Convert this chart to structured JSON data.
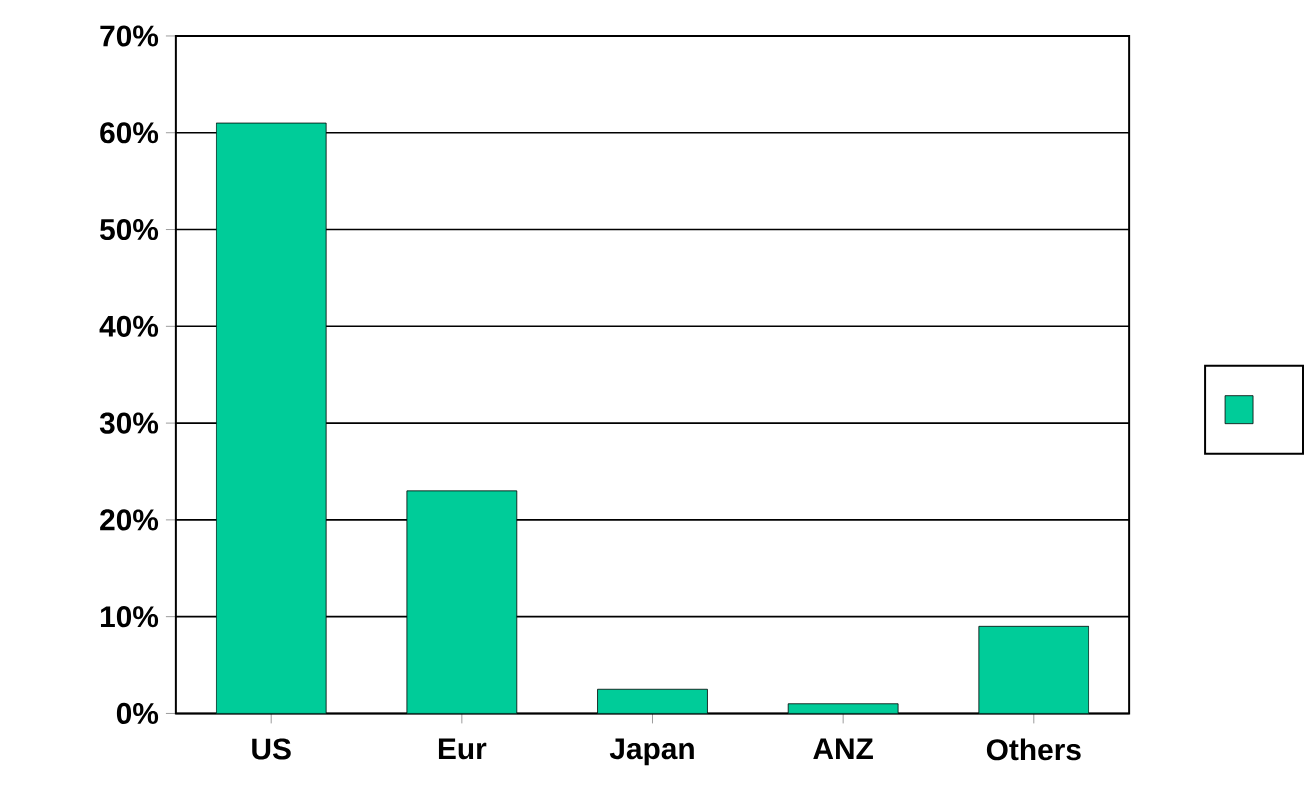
{
  "chart_data": {
    "type": "bar",
    "categories": [
      "US",
      "Eur",
      "Japan",
      "ANZ",
      "Others"
    ],
    "series": [
      {
        "color": "#00cc99",
        "values": [
          61,
          23,
          2.5,
          1,
          9
        ]
      }
    ],
    "ylim": [
      0,
      70
    ],
    "yticks": [
      {
        "value": 0,
        "label": "0%"
      },
      {
        "value": 10,
        "label": "10%"
      },
      {
        "value": 20,
        "label": "20%"
      },
      {
        "value": 30,
        "label": "30%"
      },
      {
        "value": 40,
        "label": "40%"
      },
      {
        "value": 50,
        "label": "50%"
      },
      {
        "value": 60,
        "label": "60%"
      },
      {
        "value": 70,
        "label": "70%"
      }
    ],
    "grid": "y"
  }
}
